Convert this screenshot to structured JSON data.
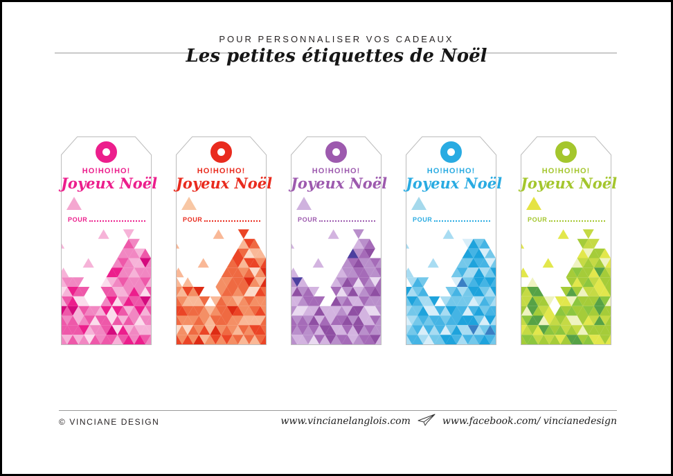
{
  "page": {
    "background": "#ffffff",
    "frame_color": "#000000"
  },
  "header": {
    "eyebrow": "POUR PERSONNALISER VOS CADEAUX",
    "title": "Les petites étiquettes de Noël"
  },
  "tag_content": {
    "greeting": "HO!HO!HO!",
    "title": "Joyeux Noël",
    "name_label": "POUR",
    "name_value": ""
  },
  "tags": [
    {
      "name": "pink",
      "color": "#ec1e8c",
      "accent": "#f4a7d0",
      "palette": [
        "#fbdcec",
        "#f6b3d8",
        "#f187c2",
        "#ee58a9",
        "#ec1e8c",
        "#d40a7d"
      ]
    },
    {
      "name": "red",
      "color": "#e92b1e",
      "accent": "#f8c7a4",
      "palette": [
        "#fcdbc9",
        "#f9b897",
        "#f48f65",
        "#ef6a42",
        "#eb4526",
        "#de2b14"
      ]
    },
    {
      "name": "purple",
      "color": "#9d5aae",
      "accent": "#cfb2de",
      "palette": [
        "#e9daf0",
        "#d3b4e0",
        "#b98fcb",
        "#a56bb8",
        "#8f4fa3",
        "#4c3f9f"
      ]
    },
    {
      "name": "blue",
      "color": "#29abe2",
      "accent": "#a5d9ec",
      "palette": [
        "#d8eef9",
        "#a8dcf2",
        "#74c8ea",
        "#45b4e4",
        "#1ea3dc",
        "#3a7fc4"
      ]
    },
    {
      "name": "green",
      "color": "#a4c62d",
      "accent": "#e5e344",
      "palette": [
        "#eff3c0",
        "#e2e74c",
        "#c5da45",
        "#a5cc39",
        "#8cc63f",
        "#56a246"
      ]
    }
  ],
  "footer": {
    "copyright": "© VINCIANE DESIGN",
    "website_url": "www.vincianelanglois.com",
    "separator_icon": "paper-plane-icon",
    "facebook_url": "www.facebook.com/ vincianedesign"
  }
}
